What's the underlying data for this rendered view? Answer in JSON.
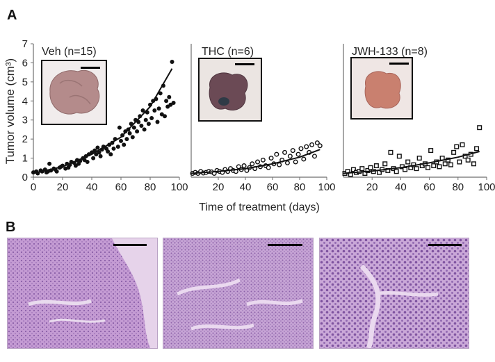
{
  "panel_labels": {
    "a": "A",
    "b": "B"
  },
  "y_axis_label": "Tumor volume (cm³)",
  "x_axis_label": "Time of treatment (days)",
  "colors": {
    "axis": "#6e6e6e",
    "ink": "#111111",
    "he_stain": "#c9a2d6",
    "he_nuclei": "#7a4e9b",
    "tumor_veh": "#b48b8b",
    "tumor_thc": "#6b4a55",
    "tumor_jwh": "#c9806f"
  },
  "chart_data": [
    {
      "type": "scatter",
      "title": "Veh (n=15)",
      "marker": "filled-circle",
      "xlim": [
        0,
        100
      ],
      "ylim": [
        0,
        7
      ],
      "x_ticks": [
        0,
        20,
        40,
        60,
        80,
        100
      ],
      "y_ticks": [
        0,
        1,
        2,
        3,
        4,
        5,
        6,
        7
      ],
      "image": "tumor-photo-veh",
      "fit_curve": {
        "type": "exponential",
        "x": [
          0,
          20,
          40,
          60,
          80,
          95
        ],
        "y": [
          0.2,
          0.55,
          1.2,
          2.1,
          3.7,
          5.7
        ]
      },
      "x": [
        0,
        2,
        3,
        5,
        6,
        8,
        9,
        10,
        11,
        12,
        14,
        15,
        16,
        18,
        19,
        20,
        22,
        23,
        24,
        25,
        26,
        28,
        29,
        30,
        31,
        32,
        34,
        35,
        36,
        37,
        38,
        40,
        41,
        42,
        43,
        44,
        45,
        46,
        47,
        48,
        50,
        51,
        52,
        53,
        54,
        55,
        56,
        58,
        59,
        60,
        61,
        62,
        63,
        64,
        65,
        66,
        67,
        68,
        69,
        70,
        71,
        72,
        73,
        74,
        75,
        76,
        77,
        78,
        79,
        80,
        81,
        82,
        83,
        84,
        85,
        86,
        87,
        88,
        89,
        90,
        91,
        92,
        93,
        94,
        95,
        96
      ],
      "y": [
        0.25,
        0.3,
        0.2,
        0.35,
        0.3,
        0.4,
        0.25,
        0.3,
        0.7,
        0.35,
        0.45,
        0.4,
        0.3,
        0.5,
        0.55,
        0.6,
        0.45,
        0.7,
        0.5,
        0.65,
        0.8,
        0.75,
        0.6,
        0.9,
        0.7,
        0.85,
        1.0,
        0.9,
        1.1,
        0.8,
        1.2,
        1.3,
        1.0,
        1.4,
        1.2,
        1.55,
        1.3,
        1.1,
        1.45,
        1.6,
        1.5,
        1.35,
        1.7,
        1.2,
        1.8,
        1.5,
        2.0,
        1.6,
        2.6,
        1.9,
        2.2,
        1.7,
        2.4,
        2.0,
        2.5,
        2.3,
        2.8,
        2.1,
        2.6,
        3.0,
        2.4,
        2.9,
        3.2,
        2.7,
        3.5,
        2.5,
        3.0,
        3.4,
        2.8,
        3.8,
        3.1,
        4.0,
        3.5,
        4.1,
        2.9,
        3.6,
        4.4,
        3.3,
        4.8,
        3.2,
        4.0,
        3.7,
        4.2,
        3.8,
        6.05,
        3.9
      ]
    },
    {
      "type": "scatter",
      "title": "THC (n=6)",
      "marker": "open-circle",
      "xlim": [
        0,
        100
      ],
      "ylim": [
        0,
        7
      ],
      "x_ticks": [
        20,
        40,
        60,
        80,
        100
      ],
      "image": "tumor-photo-thc",
      "fit_curve": {
        "type": "exponential",
        "x": [
          0,
          20,
          40,
          60,
          80,
          95
        ],
        "y": [
          0.2,
          0.3,
          0.45,
          0.7,
          1.05,
          1.45
        ]
      },
      "x": [
        1,
        3,
        5,
        7,
        9,
        11,
        13,
        15,
        17,
        19,
        21,
        23,
        25,
        27,
        29,
        31,
        33,
        35,
        37,
        39,
        41,
        43,
        45,
        47,
        49,
        51,
        53,
        55,
        57,
        59,
        61,
        63,
        65,
        67,
        69,
        71,
        73,
        75,
        77,
        79,
        81,
        83,
        85,
        87,
        89,
        91,
        93,
        95
      ],
      "y": [
        0.2,
        0.25,
        0.2,
        0.3,
        0.22,
        0.25,
        0.3,
        0.28,
        0.2,
        0.35,
        0.3,
        0.25,
        0.4,
        0.3,
        0.45,
        0.35,
        0.3,
        0.55,
        0.4,
        0.6,
        0.35,
        0.5,
        0.7,
        0.45,
        0.8,
        0.55,
        0.9,
        0.6,
        0.5,
        1.0,
        0.7,
        1.2,
        0.65,
        0.9,
        1.3,
        0.75,
        1.1,
        1.4,
        0.8,
        1.2,
        1.5,
        0.95,
        1.6,
        1.3,
        1.7,
        1.1,
        1.8,
        1.65
      ]
    },
    {
      "type": "scatter",
      "title": "JWH-133 (n=8)",
      "marker": "open-square",
      "xlim": [
        0,
        100
      ],
      "ylim": [
        0,
        7
      ],
      "x_ticks": [
        20,
        40,
        60,
        80,
        100
      ],
      "image": "tumor-photo-jwh",
      "fit_curve": {
        "type": "exponential",
        "x": [
          0,
          20,
          40,
          60,
          80,
          95
        ],
        "y": [
          0.2,
          0.32,
          0.5,
          0.75,
          1.05,
          1.35
        ]
      },
      "x": [
        1,
        3,
        5,
        7,
        9,
        11,
        13,
        15,
        17,
        19,
        21,
        23,
        25,
        27,
        29,
        31,
        33,
        35,
        37,
        39,
        41,
        43,
        45,
        47,
        49,
        51,
        53,
        55,
        57,
        59,
        61,
        63,
        65,
        67,
        69,
        71,
        73,
        75,
        77,
        79,
        81,
        83,
        85,
        87,
        89,
        91,
        93,
        95
      ],
      "y": [
        0.2,
        0.3,
        0.15,
        0.4,
        0.25,
        0.3,
        0.45,
        0.2,
        0.35,
        0.5,
        0.3,
        0.6,
        0.25,
        0.4,
        0.7,
        0.35,
        1.3,
        0.45,
        0.3,
        1.1,
        0.55,
        0.4,
        0.8,
        0.5,
        0.65,
        0.45,
        1.0,
        0.6,
        0.7,
        0.5,
        1.4,
        0.6,
        0.8,
        0.55,
        1.0,
        0.7,
        0.9,
        0.65,
        1.3,
        1.6,
        0.8,
        1.7,
        1.1,
        0.9,
        1.2,
        0.7,
        1.5,
        2.6
      ]
    }
  ]
}
